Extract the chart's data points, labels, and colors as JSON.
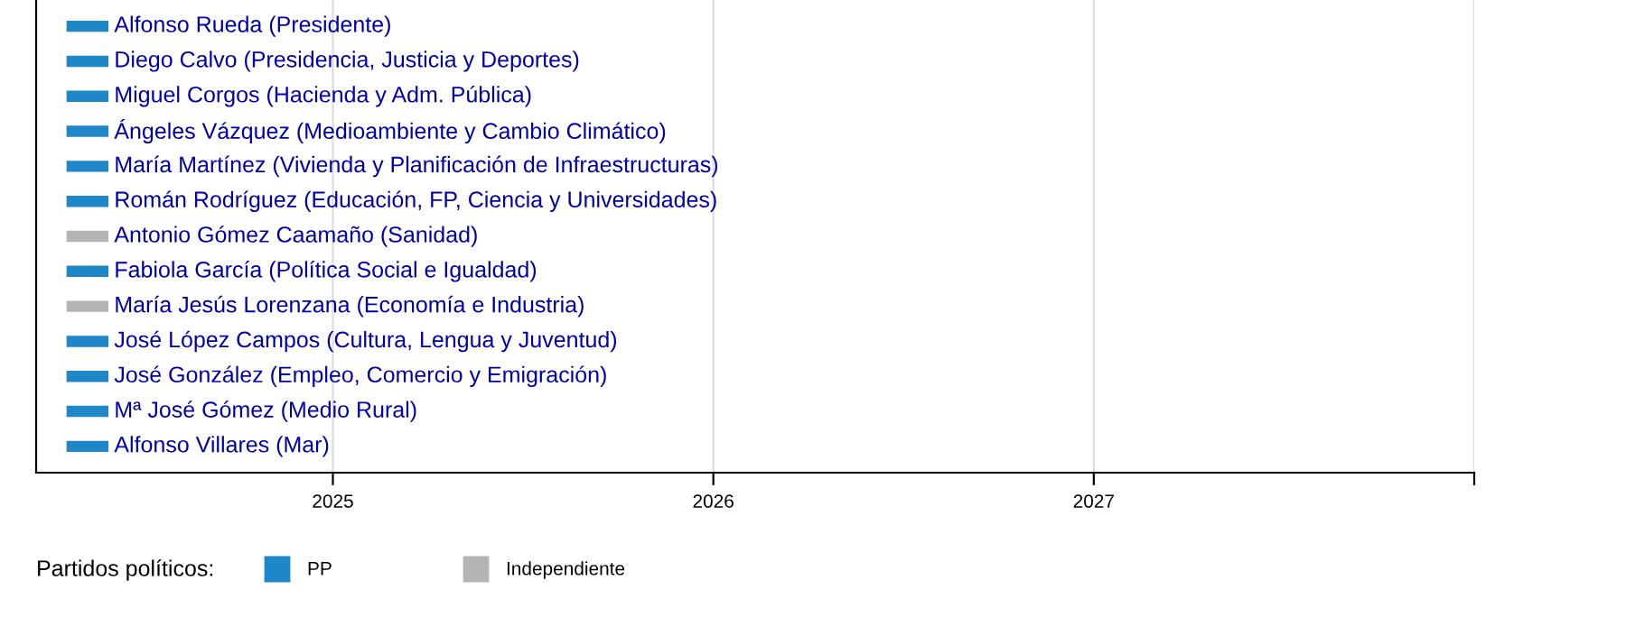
{
  "chart_data": {
    "type": "bar",
    "orientation": "horizontal",
    "categories": [
      "Alfonso Rueda (Presidente)",
      "Diego Calvo (Presidencia, Justicia y Deportes)",
      "Miguel Corgos (Hacienda y Adm. Pública)",
      "Ángeles Vázquez (Medioambiente y Cambio Climático)",
      "María Martínez (Vivienda y Planificación de Infraestructuras)",
      "Román Rodríguez (Educación, FP, Ciencia y Universidades)",
      "Antonio Gómez Caamaño (Sanidad)",
      "Fabiola García (Política Social e Igualdad)",
      "María Jesús Lorenzana (Economía e Industria)",
      "José López Campos (Cultura, Lengua y Juventud)",
      "José González (Empleo, Comercio y Emigración)",
      "Mª José Gómez (Medio Rural)",
      "Alfonso Villares (Mar)"
    ],
    "series": [
      {
        "name": "PP",
        "color": "#1f86c8",
        "base": [
          2024.3,
          2024.3,
          2024.3,
          2024.3,
          2024.3,
          2024.3,
          null,
          2024.3,
          null,
          2024.3,
          2024.3,
          2024.3,
          2024.3
        ],
        "values": [
          0.11,
          0.11,
          0.11,
          0.11,
          0.11,
          0.11,
          null,
          0.11,
          null,
          0.11,
          0.11,
          0.11,
          0.11
        ]
      },
      {
        "name": "Independiente",
        "color": "#b4b4b4",
        "base": [
          null,
          null,
          null,
          null,
          null,
          null,
          2024.3,
          null,
          2024.3,
          null,
          null,
          null,
          null
        ],
        "values": [
          null,
          null,
          null,
          null,
          null,
          null,
          0.11,
          null,
          0.11,
          null,
          null,
          null,
          null
        ]
      }
    ],
    "xlim": [
      2024.22,
      2028
    ],
    "xticks": [
      2025,
      2026,
      2027,
      {
        "value": 2028,
        "label": null
      }
    ],
    "grid": "x",
    "legend": "bottom",
    "legend_title": "Partidos políticos:"
  }
}
